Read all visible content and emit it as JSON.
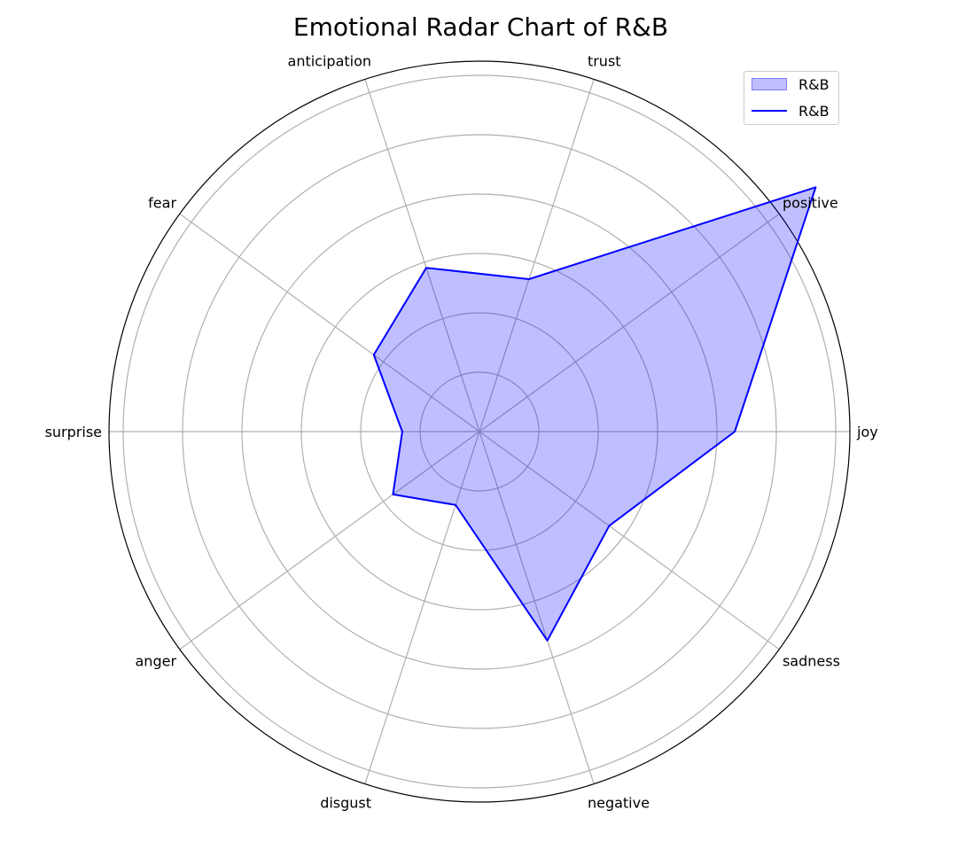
{
  "chart_data": {
    "type": "radar",
    "title": "Emotional Radar Chart of R&B",
    "categories": [
      "joy",
      "positive",
      "trust",
      "anticipation",
      "fear",
      "surprise",
      "anger",
      "disgust",
      "negative",
      "sadness"
    ],
    "series": [
      {
        "name": "R&B",
        "values": [
          0.43,
          0.7,
          0.27,
          0.29,
          0.22,
          0.13,
          0.18,
          0.13,
          0.37,
          0.27
        ]
      }
    ],
    "rlim": [
      0,
      0.6
    ],
    "r_gridlines": [
      0.1,
      0.2,
      0.3,
      0.4,
      0.5,
      0.6
    ],
    "grid": true,
    "legend": {
      "placement": "top-right",
      "entries": [
        {
          "label": "R&B",
          "kind": "fill"
        },
        {
          "label": "R&B",
          "kind": "line"
        }
      ]
    },
    "colors": {
      "series_line": "#0000ff",
      "series_fill": "rgba(0,0,255,0.25)",
      "grid": "#b0b0b0",
      "frame": "#000000"
    }
  }
}
